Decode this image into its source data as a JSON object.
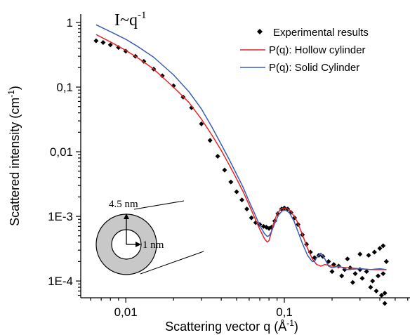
{
  "chart_data": {
    "type": "scatter",
    "xlabel_main": "Scattering vector q (Å",
    "xlabel_sup": "-1",
    "xlabel_tail": ")",
    "ylabel_main": "Scattered intensity (cm",
    "ylabel_sup": "-1",
    "ylabel_tail": ")",
    "x_scale": "log",
    "y_scale": "log",
    "xlim": [
      0.0052,
      0.62
    ],
    "ylim": [
      5.5e-05,
      1.35
    ],
    "x_ticks": [
      {
        "value": 0.01,
        "label": "0,01"
      },
      {
        "value": 0.1,
        "label": "0,1"
      }
    ],
    "y_ticks": [
      {
        "value": 1,
        "label": "1"
      },
      {
        "value": 0.1,
        "label": "0,1"
      },
      {
        "value": 0.01,
        "label": "0,01"
      },
      {
        "value": 0.001,
        "label": "1E-3"
      },
      {
        "value": 0.0001,
        "label": "1E-4"
      }
    ],
    "grid": false,
    "legend_position": "top-right",
    "power_law_annotation": {
      "base": "I~q",
      "sup": "-1"
    },
    "inset": {
      "outer_label": "4.5 nm",
      "inner_label": "1 nm",
      "fill_color": "#c8c8c8"
    },
    "series": [
      {
        "name": "Experimental results",
        "kind": "markers",
        "color": "#000000",
        "x": [
          0.0065,
          0.0072,
          0.008,
          0.009,
          0.01,
          0.0115,
          0.013,
          0.015,
          0.017,
          0.02,
          0.023,
          0.026,
          0.03,
          0.034,
          0.038,
          0.042,
          0.046,
          0.05,
          0.054,
          0.058,
          0.062,
          0.066,
          0.07,
          0.074,
          0.077,
          0.08,
          0.083,
          0.087,
          0.091,
          0.096,
          0.1,
          0.105,
          0.11,
          0.116,
          0.122,
          0.13,
          0.138,
          0.146,
          0.155,
          0.165,
          0.175,
          0.19,
          0.205,
          0.22,
          0.24,
          0.26,
          0.28,
          0.3,
          0.33,
          0.36,
          0.39,
          0.42,
          0.44,
          0.2,
          0.23,
          0.27,
          0.31,
          0.35,
          0.38,
          0.41,
          0.43,
          0.25,
          0.3,
          0.34,
          0.37,
          0.4,
          0.42,
          0.43
        ],
        "y": [
          0.52,
          0.49,
          0.45,
          0.41,
          0.36,
          0.3,
          0.25,
          0.19,
          0.15,
          0.105,
          0.07,
          0.048,
          0.027,
          0.015,
          0.0085,
          0.0052,
          0.0034,
          0.0024,
          0.0018,
          0.0013,
          0.00095,
          0.0008,
          0.00075,
          0.0007,
          0.00068,
          0.00065,
          0.00068,
          0.00085,
          0.0011,
          0.0013,
          0.00135,
          0.0013,
          0.00115,
          0.00095,
          0.00075,
          0.00052,
          0.00037,
          0.00028,
          0.00023,
          0.00025,
          0.00024,
          0.0002,
          0.00018,
          0.00017,
          0.00015,
          0.00016,
          0.00013,
          0.00015,
          0.00014,
          0.0001,
          0.00012,
          0.00013,
          0.0002,
          0.00014,
          0.00012,
          9.5e-05,
          0.00011,
          8e-05,
          7e-05,
          6e-05,
          4.5e-05,
          0.00022,
          0.00026,
          0.00025,
          0.00028,
          0.00032,
          0.00035,
          6.5e-05
        ]
      },
      {
        "name": "P(q): Hollow cylinder",
        "kind": "line",
        "color": "#e0252b",
        "x": [
          0.0065,
          0.008,
          0.01,
          0.012,
          0.015,
          0.02,
          0.025,
          0.03,
          0.035,
          0.04,
          0.045,
          0.05,
          0.055,
          0.06,
          0.065,
          0.07,
          0.075,
          0.078,
          0.08,
          0.082,
          0.085,
          0.09,
          0.095,
          0.1,
          0.105,
          0.11,
          0.12,
          0.13,
          0.14,
          0.15,
          0.16,
          0.17,
          0.18,
          0.2,
          0.22,
          0.25,
          0.3,
          0.35,
          0.4,
          0.44
        ],
        "y": [
          0.65,
          0.5,
          0.37,
          0.28,
          0.19,
          0.1,
          0.058,
          0.032,
          0.018,
          0.0105,
          0.0062,
          0.0038,
          0.0024,
          0.0015,
          0.00095,
          0.00063,
          0.00045,
          0.0004,
          0.00042,
          0.00052,
          0.00075,
          0.0011,
          0.0013,
          0.00135,
          0.0013,
          0.0012,
          0.00085,
          0.00052,
          0.00032,
          0.00022,
          0.00018,
          0.00017,
          0.00018,
          0.00017,
          0.000165,
          0.00016,
          0.000155,
          0.00015,
          0.00015,
          0.00015
        ]
      },
      {
        "name": "P(q): Solid Cylinder",
        "kind": "line",
        "color": "#3a5fb0",
        "x": [
          0.0065,
          0.008,
          0.01,
          0.012,
          0.015,
          0.02,
          0.025,
          0.03,
          0.035,
          0.04,
          0.045,
          0.05,
          0.055,
          0.06,
          0.065,
          0.07,
          0.075,
          0.078,
          0.08,
          0.083,
          0.087,
          0.092,
          0.097,
          0.102,
          0.108,
          0.115,
          0.122,
          0.13,
          0.14,
          0.15,
          0.155,
          0.16,
          0.17,
          0.18,
          0.19,
          0.2,
          0.22,
          0.25,
          0.3,
          0.35,
          0.4,
          0.44
        ],
        "y": [
          0.92,
          0.72,
          0.55,
          0.42,
          0.29,
          0.155,
          0.085,
          0.046,
          0.024,
          0.013,
          0.0075,
          0.0045,
          0.0028,
          0.0017,
          0.0011,
          0.00072,
          0.00054,
          0.00049,
          0.0005,
          0.00058,
          0.00078,
          0.00105,
          0.00122,
          0.00125,
          0.00112,
          0.00085,
          0.00058,
          0.00038,
          0.00025,
          0.0002,
          0.0002,
          0.00023,
          0.00027,
          0.00022,
          0.00017,
          0.00016,
          0.00017,
          0.00015,
          0.000155,
          0.00015,
          0.000155,
          0.00015
        ]
      }
    ]
  }
}
